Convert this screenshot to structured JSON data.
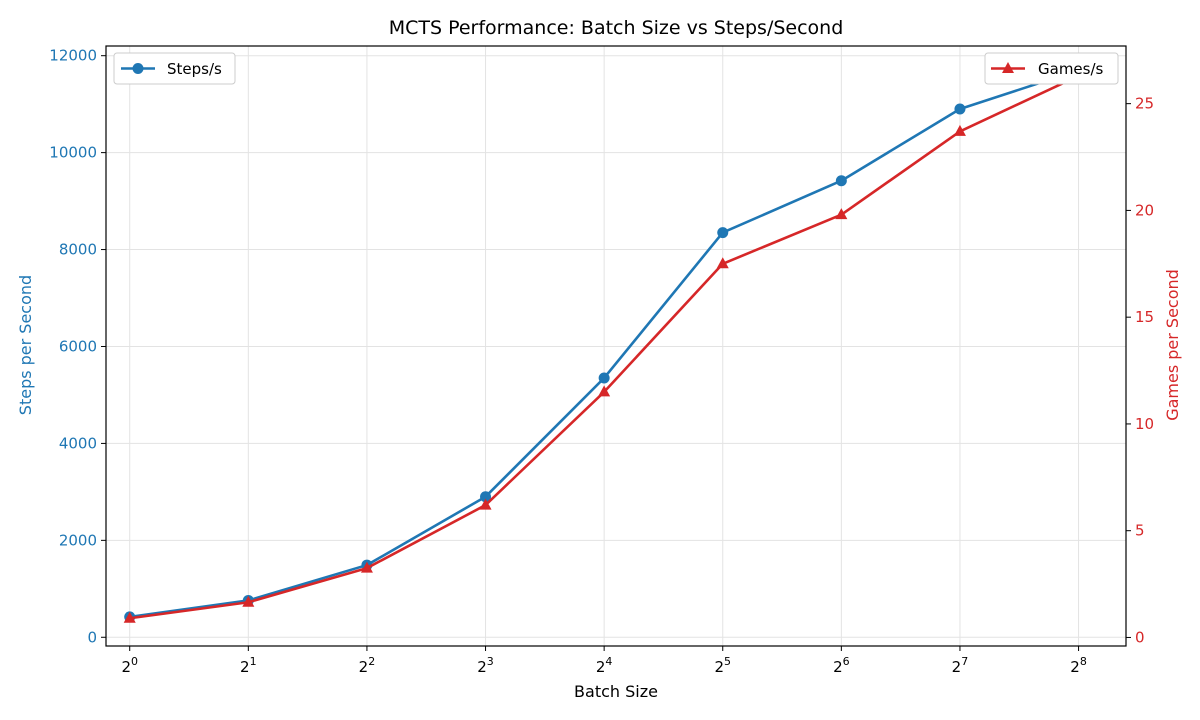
{
  "colors": {
    "steps": "#1f77b4",
    "games": "#d62728",
    "grid": "#e3e3e3",
    "axis": "#000000"
  },
  "chart_data": {
    "type": "line",
    "title": "MCTS Performance: Batch Size vs Steps/Second",
    "xlabel": "Batch Size",
    "ylabel_left": "Steps per Second",
    "ylabel_right": "Games per Second",
    "x_scale": "log2",
    "x": [
      1,
      2,
      4,
      8,
      16,
      32,
      64,
      128,
      256
    ],
    "x_tick_base": "2",
    "x_tick_exponents": [
      "0",
      "1",
      "2",
      "3",
      "4",
      "5",
      "6",
      "7",
      "8"
    ],
    "ylim_left": [
      -180,
      12200
    ],
    "yticks_left": [
      "0",
      "2000",
      "4000",
      "6000",
      "8000",
      "10000",
      "12000"
    ],
    "ylim_right": [
      -0.4,
      27.7
    ],
    "yticks_right": [
      "0",
      "5",
      "10",
      "15",
      "20",
      "25"
    ],
    "grid": true,
    "series": [
      {
        "name": "Steps/s",
        "axis": "left",
        "marker": "circle",
        "legend_position": "top-left",
        "values": [
          420,
          760,
          1490,
          2900,
          5350,
          8350,
          9420,
          10900,
          11700
        ]
      },
      {
        "name": "Games/s",
        "axis": "right",
        "marker": "triangle",
        "legend_position": "top-right",
        "values": [
          0.9,
          1.65,
          3.25,
          6.2,
          11.5,
          17.5,
          19.8,
          23.7,
          26.3
        ]
      }
    ]
  }
}
